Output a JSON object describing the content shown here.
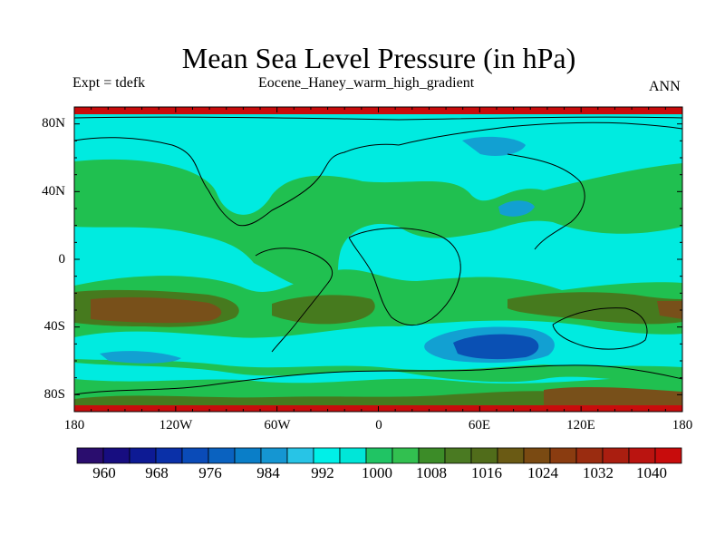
{
  "title": "Mean Sea Level Pressure (in hPa)",
  "left_string": "Expt = tdefk",
  "center_string": "Eocene_Haney_warm_high_gradient",
  "right_string": "ANN",
  "lat_ticks": [
    "80N",
    "40N",
    "0",
    "40S",
    "80S"
  ],
  "lon_ticks": [
    "180",
    "120W",
    "60W",
    "0",
    "60E",
    "120E",
    "180"
  ],
  "colorbar_labels": [
    "960",
    "968",
    "976",
    "984",
    "992",
    "1000",
    "1008",
    "1016",
    "1024",
    "1032",
    "1040"
  ],
  "colorbar_colors": [
    "#2a0d6e",
    "#170d80",
    "#0d1a94",
    "#0a30a8",
    "#0a4bb8",
    "#0a62c0",
    "#0a7ec8",
    "#1596d2",
    "#28c4e6",
    "#00f0e8",
    "#00e6d8",
    "#20c464",
    "#32c050",
    "#3c8c28",
    "#4a7a22",
    "#506c1a",
    "#6a5a14",
    "#7a4a12",
    "#8a3c10",
    "#9a2c10",
    "#aa1e10",
    "#ba1410",
    "#c80c0c"
  ],
  "colors": {
    "cyan": "#00ebe0",
    "green": "#20c050",
    "olive": "#467a1e",
    "brown": "#78501a",
    "blue_light": "#12a0d2",
    "blue": "#0a6ec8",
    "blue_dark": "#0a50b4",
    "red_band": "#c80c0c"
  }
}
